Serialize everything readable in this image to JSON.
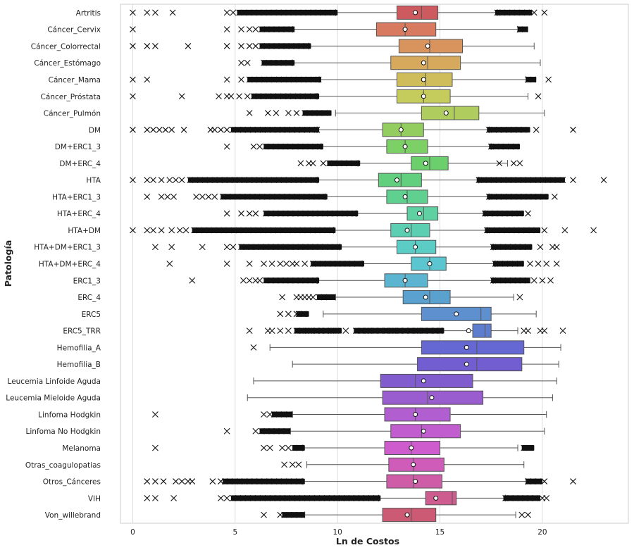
{
  "chart_data": {
    "type": "boxplot",
    "orientation": "horizontal",
    "title": "",
    "xlabel": "Ln de Costos",
    "ylabel": "Patología",
    "xlim": [
      -0.6,
      24.2
    ],
    "xticks": [
      0,
      5,
      10,
      15,
      20
    ],
    "xtick_labels": [
      "0",
      "5",
      "10",
      "15",
      "20"
    ],
    "grid": "vertical",
    "mean_marker": "white circle",
    "outlier_marker": "x",
    "categories": [
      "Artritis",
      "Cáncer_Cervix",
      "Cáncer_Colorrectal",
      "Cáncer_Estómago",
      "Cáncer_Mama",
      "Cáncer_Próstata",
      "Cáncer_Pulmón",
      "DM",
      "DM+ERC1_3",
      "DM+ERC_4",
      "HTA",
      "HTA+ERC1_3",
      "HTA+ERC_4",
      "HTA+DM",
      "HTA+DM+ERC1_3",
      "HTA+DM+ERC_4",
      "ERC1_3",
      "ERC_4",
      "ERC5",
      "ERC5_TRR",
      "Hemofilia_A",
      "Hemofilia_B",
      "Leucemia Linfoide Aguda",
      "Leucemia Mieloide Aguda",
      "Linfoma Hodgkin",
      "Linfoma No Hodgkin",
      "Melanoma",
      "Otras_coagulopatias",
      "Otros_Cánceres",
      "VIH",
      "Von_willebrand"
    ],
    "series": [
      {
        "name": "Artritis",
        "whislo": 9.9,
        "q1": 12.9,
        "median": 14.1,
        "q3": 14.9,
        "whishi": 17.8,
        "mean": 13.8,
        "colour": "#cc5a5f",
        "low_dense": [
          5.2,
          9.9
        ],
        "high_dense": [
          17.8,
          19.4
        ],
        "sparse": [
          0,
          0.7,
          1.1,
          1.95,
          4.6,
          4.9,
          19.6,
          20.1
        ]
      },
      {
        "name": "Cáncer_Cervix",
        "whislo": 7.8,
        "q1": 11.9,
        "median": 13.3,
        "q3": 14.8,
        "whishi": 18.8,
        "mean": 13.3,
        "colour": "#d77a60",
        "low_dense": [
          6.3,
          7.8
        ],
        "high_dense": [
          18.9,
          19.2
        ],
        "sparse": [
          0,
          4.6,
          5.3,
          5.7,
          6.0
        ]
      },
      {
        "name": "Cáncer_Colorrectal",
        "whislo": 8.6,
        "q1": 13.0,
        "median": 14.5,
        "q3": 16.1,
        "whishi": 19.6,
        "mean": 14.4,
        "colour": "#d9945e",
        "low_dense": [
          6.3,
          8.6
        ],
        "high_dense": [],
        "sparse": [
          0,
          0.7,
          1.1,
          2.7,
          4.6,
          5.3,
          5.7,
          6.0
        ]
      },
      {
        "name": "Cáncer_Estómago",
        "whislo": 7.8,
        "q1": 12.6,
        "median": 14.4,
        "q3": 16.0,
        "whishi": 19.9,
        "mean": 14.2,
        "colour": "#d6a95c",
        "low_dense": [
          6.4,
          7.8
        ],
        "high_dense": [],
        "sparse": [
          5.3,
          5.6
        ]
      },
      {
        "name": "Cáncer_Mama",
        "whislo": 9.1,
        "q1": 12.9,
        "median": 14.3,
        "q3": 15.6,
        "whishi": 19.2,
        "mean": 14.2,
        "colour": "#cfbd5b",
        "low_dense": [
          5.7,
          9.1
        ],
        "high_dense": [
          19.3,
          19.6
        ],
        "sparse": [
          0,
          0.7,
          4.6,
          5.3,
          20.3
        ]
      },
      {
        "name": "Cáncer_Próstata",
        "whislo": 9.0,
        "q1": 12.9,
        "median": 14.2,
        "q3": 15.5,
        "whishi": 19.3,
        "mean": 14.2,
        "colour": "#c6cc5c",
        "low_dense": [
          5.9,
          9.0
        ],
        "high_dense": [],
        "sparse": [
          0,
          2.4,
          4.2,
          4.6,
          4.8,
          5.2,
          5.6,
          19.8
        ]
      },
      {
        "name": "Cáncer_Pulmón",
        "whislo": 9.9,
        "q1": 14.1,
        "median": 15.7,
        "q3": 16.9,
        "whishi": 20.1,
        "mean": 15.3,
        "colour": "#afcc5e",
        "low_dense": [
          8.4,
          9.6
        ],
        "high_dense": [],
        "sparse": [
          5.7,
          6.6,
          7.0,
          7.6,
          8.0
        ]
      },
      {
        "name": "DM",
        "whislo": 9.0,
        "q1": 12.2,
        "median": 13.1,
        "q3": 14.2,
        "whishi": 17.4,
        "mean": 13.1,
        "colour": "#93cc5f",
        "low_dense": [
          4.9,
          9.0
        ],
        "high_dense": [
          17.4,
          19.3
        ],
        "sparse": [
          0,
          0.7,
          1.0,
          1.3,
          1.6,
          1.9,
          2.5,
          3.8,
          4.0,
          4.3,
          4.6,
          19.7,
          21.5
        ]
      },
      {
        "name": "DM+ERC1_3",
        "whislo": 9.2,
        "q1": 12.4,
        "median": 13.3,
        "q3": 14.4,
        "whishi": 17.5,
        "mean": 13.3,
        "colour": "#7dd065",
        "low_dense": [
          6.5,
          9.2
        ],
        "high_dense": [
          17.5,
          18.8
        ],
        "sparse": [
          4.6,
          5.9,
          6.2
        ]
      },
      {
        "name": "DM+ERC_4",
        "whislo": 11.0,
        "q1": 13.6,
        "median": 14.5,
        "q3": 15.4,
        "whishi": 18.3,
        "mean": 14.3,
        "colour": "#6bd06c",
        "low_dense": [
          9.6,
          11.0
        ],
        "high_dense": [],
        "sparse": [
          8.2,
          8.6,
          8.8,
          9.3,
          17.9,
          18.6,
          18.9
        ]
      },
      {
        "name": "HTA",
        "whislo": 9.0,
        "q1": 12.0,
        "median": 13.1,
        "q3": 14.1,
        "whishi": 16.9,
        "mean": 12.9,
        "colour": "#62cf7e",
        "low_dense": [
          2.8,
          9.0
        ],
        "high_dense": [
          16.9,
          21.0
        ],
        "sparse": [
          0,
          0.7,
          1.0,
          1.4,
          1.8,
          2.1,
          2.4,
          21.5,
          23.0
        ]
      },
      {
        "name": "HTA+ERC1_3",
        "whislo": 9.4,
        "q1": 12.4,
        "median": 13.4,
        "q3": 14.4,
        "whishi": 17.4,
        "mean": 13.3,
        "colour": "#5fd08f",
        "low_dense": [
          4.4,
          9.4
        ],
        "high_dense": [
          17.4,
          20.2
        ],
        "sparse": [
          0.7,
          1.4,
          1.7,
          2.0,
          3.1,
          3.4,
          3.7,
          4.0,
          20.6
        ]
      },
      {
        "name": "HTA+ERC_4",
        "whislo": 10.9,
        "q1": 13.4,
        "median": 14.2,
        "q3": 14.9,
        "whishi": 17.2,
        "mean": 14.0,
        "colour": "#5ed0a2",
        "low_dense": [
          6.5,
          10.9
        ],
        "high_dense": [
          17.2,
          19.0
        ],
        "sparse": [
          4.6,
          5.3,
          5.7,
          6.0,
          19.3
        ]
      },
      {
        "name": "HTA+DM",
        "whislo": 9.8,
        "q1": 12.6,
        "median": 13.6,
        "q3": 14.5,
        "whishi": 17.3,
        "mean": 13.4,
        "colour": "#5ccfb3",
        "low_dense": [
          3.0,
          9.8
        ],
        "high_dense": [
          17.3,
          19.8
        ],
        "sparse": [
          0,
          0.7,
          1.0,
          1.4,
          1.9,
          2.3,
          2.6,
          20.1,
          21.1,
          22.5
        ]
      },
      {
        "name": "HTA+DM+ERC1_3",
        "whislo": 10.1,
        "q1": 12.9,
        "median": 13.8,
        "q3": 14.8,
        "whishi": 17.6,
        "mean": 13.8,
        "colour": "#5bcdc4",
        "low_dense": [
          5.3,
          10.1
        ],
        "high_dense": [
          17.6,
          19.4
        ],
        "sparse": [
          1.1,
          1.9,
          3.4,
          4.6,
          4.9,
          19.9,
          20.5,
          20.7
        ]
      },
      {
        "name": "HTA+DM+ERC_4",
        "whislo": 11.2,
        "q1": 13.6,
        "median": 14.5,
        "q3": 15.3,
        "whishi": 17.7,
        "mean": 14.5,
        "colour": "#5bc6cf",
        "low_dense": [
          8.8,
          11.2
        ],
        "high_dense": [
          17.7,
          19.0
        ],
        "sparse": [
          1.8,
          4.6,
          5.7,
          6.4,
          6.8,
          7.2,
          7.5,
          7.8,
          8.0,
          8.4,
          19.4,
          19.8,
          20.2,
          20.7
        ]
      },
      {
        "name": "ERC1_3",
        "whislo": 9.0,
        "q1": 12.3,
        "median": 13.3,
        "q3": 14.4,
        "whishi": 17.6,
        "mean": 13.3,
        "colour": "#5bb4d0",
        "low_dense": [
          6.5,
          9.0
        ],
        "high_dense": [
          17.6,
          19.3
        ],
        "sparse": [
          2.9,
          5.4,
          5.7,
          6.0,
          6.2,
          19.6,
          20.0,
          20.4
        ]
      },
      {
        "name": "ERC_4",
        "whislo": 9.9,
        "q1": 13.2,
        "median": 14.5,
        "q3": 15.5,
        "whishi": 18.6,
        "mean": 14.3,
        "colour": "#5aa1cf",
        "low_dense": [
          9.1,
          9.8
        ],
        "high_dense": [],
        "sparse": [
          7.3,
          8.0,
          8.2,
          8.4,
          8.6,
          8.8,
          18.9
        ]
      },
      {
        "name": "ERC5",
        "whislo": 9.3,
        "q1": 14.1,
        "median": 17.0,
        "q3": 17.5,
        "whishi": 19.7,
        "mean": 15.8,
        "colour": "#5e8fcf",
        "low_dense": [
          8.1,
          8.5
        ],
        "high_dense": [],
        "sparse": [
          7.2,
          7.6,
          8.0
        ]
      },
      {
        "name": "ERC5_TRR",
        "whislo": 15.1,
        "q1": 16.6,
        "median": 17.2,
        "q3": 17.5,
        "whishi": 18.8,
        "mean": 16.4,
        "colour": "#5f7dcf",
        "low_dense": [
          8.0,
          10.1,
          10.9,
          15.1
        ],
        "high_dense": [],
        "sparse": [
          5.7,
          6.6,
          6.8,
          7.2,
          7.6,
          8.3,
          8.6,
          9.0,
          9.4,
          9.8,
          10.4,
          11.2,
          11.5,
          11.8,
          12.1,
          12.4,
          12.7,
          13.0,
          13.3,
          13.6,
          13.9,
          14.2,
          14.5,
          14.8,
          19.1,
          19.3,
          19.9,
          20.1,
          21.0
        ]
      },
      {
        "name": "Hemofilia_A",
        "whislo": 6.7,
        "q1": 14.1,
        "median": 16.8,
        "q3": 19.1,
        "whishi": 20.9,
        "mean": 16.3,
        "colour": "#6567d3",
        "low_dense": [],
        "high_dense": [],
        "sparse": [
          5.9
        ]
      },
      {
        "name": "Hemofilia_B",
        "whislo": 7.8,
        "q1": 13.9,
        "median": 16.8,
        "q3": 19.0,
        "whishi": 20.8,
        "mean": 16.3,
        "colour": "#735ed1",
        "low_dense": [],
        "high_dense": [],
        "sparse": []
      },
      {
        "name": "Leucemia Linfoide Aguda",
        "whislo": 5.9,
        "q1": 12.1,
        "median": 13.8,
        "q3": 16.6,
        "whishi": 20.7,
        "mean": 14.2,
        "colour": "#805ccf",
        "low_dense": [],
        "high_dense": [],
        "sparse": []
      },
      {
        "name": "Leucemia Mieloide Aguda",
        "whislo": 5.6,
        "q1": 12.2,
        "median": 14.4,
        "q3": 17.1,
        "whishi": 20.5,
        "mean": 14.6,
        "colour": "#9a5dcf",
        "low_dense": [],
        "high_dense": [],
        "sparse": []
      },
      {
        "name": "Linfoma Hodgkin",
        "whislo": 7.8,
        "q1": 12.3,
        "median": 13.8,
        "q3": 15.5,
        "whishi": 20.2,
        "mean": 13.8,
        "colour": "#b05ed0",
        "low_dense": [
          6.9,
          7.7
        ],
        "high_dense": [],
        "sparse": [
          1.1,
          6.4,
          6.7
        ]
      },
      {
        "name": "Linfoma No Hodgkin",
        "whislo": 7.7,
        "q1": 12.6,
        "median": 14.1,
        "q3": 16.0,
        "whishi": 20.1,
        "mean": 14.2,
        "colour": "#c25dcf",
        "low_dense": [
          6.3,
          7.6
        ],
        "high_dense": [],
        "sparse": [
          4.6,
          6.0
        ]
      },
      {
        "name": "Melanoma",
        "whislo": 8.3,
        "q1": 12.3,
        "median": 13.6,
        "q3": 15.0,
        "whishi": 18.8,
        "mean": 13.6,
        "colour": "#cf5ccd",
        "low_dense": [
          7.9,
          8.3
        ],
        "high_dense": [
          19.1,
          19.5
        ],
        "sparse": [
          1.1,
          6.4,
          6.7,
          7.3,
          7.6
        ]
      },
      {
        "name": "Otras_coagulopatias",
        "whislo": 8.5,
        "q1": 12.5,
        "median": 13.7,
        "q3": 15.2,
        "whishi": 19.1,
        "mean": 13.7,
        "colour": "#cf5cb9",
        "low_dense": [],
        "high_dense": [],
        "sparse": [
          7.4,
          7.8,
          8.1
        ]
      },
      {
        "name": "Otros_Cánceres",
        "whislo": 8.3,
        "q1": 12.4,
        "median": 13.7,
        "q3": 15.1,
        "whishi": 19.2,
        "mean": 13.8,
        "colour": "#cf5ca6",
        "low_dense": [
          4.5,
          8.3
        ],
        "high_dense": [
          19.3,
          19.9
        ],
        "sparse": [
          0.7,
          1.1,
          1.5,
          2.1,
          2.4,
          2.7,
          2.9,
          3.9,
          4.3,
          20.1,
          21.5
        ]
      },
      {
        "name": "VIH",
        "whislo": 12.0,
        "q1": 14.3,
        "median": 15.6,
        "q3": 15.8,
        "whishi": 18.2,
        "mean": 14.8,
        "colour": "#cf5c8f",
        "low_dense": [
          4.9,
          12.0
        ],
        "high_dense": [
          18.2,
          19.8
        ],
        "sparse": [
          0.7,
          1.1,
          2.0,
          4.3,
          4.6,
          20.0,
          20.2
        ]
      },
      {
        "name": "Von_willebrand",
        "whislo": 8.4,
        "q1": 12.2,
        "median": 13.6,
        "q3": 14.8,
        "whishi": 18.7,
        "mean": 13.4,
        "colour": "#cc5a74",
        "low_dense": [
          7.4,
          8.3
        ],
        "high_dense": [],
        "sparse": [
          6.4,
          7.2,
          19.0,
          19.3
        ]
      }
    ]
  }
}
